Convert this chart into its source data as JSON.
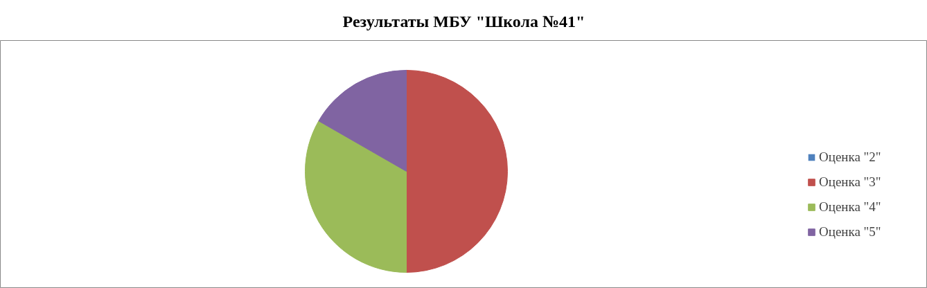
{
  "chart_data": {
    "type": "pie",
    "title": "Результаты МБУ \"Школа №41\"",
    "categories": [
      "Оценка \"2\"",
      "Оценка \"3\"",
      "Оценка \"4\"",
      "Оценка \"5\""
    ],
    "values": [
      0,
      50,
      33.3,
      16.7
    ],
    "colors": [
      "#4f81bd",
      "#c0504d",
      "#9bbb59",
      "#8064a2"
    ],
    "legend": "right"
  }
}
